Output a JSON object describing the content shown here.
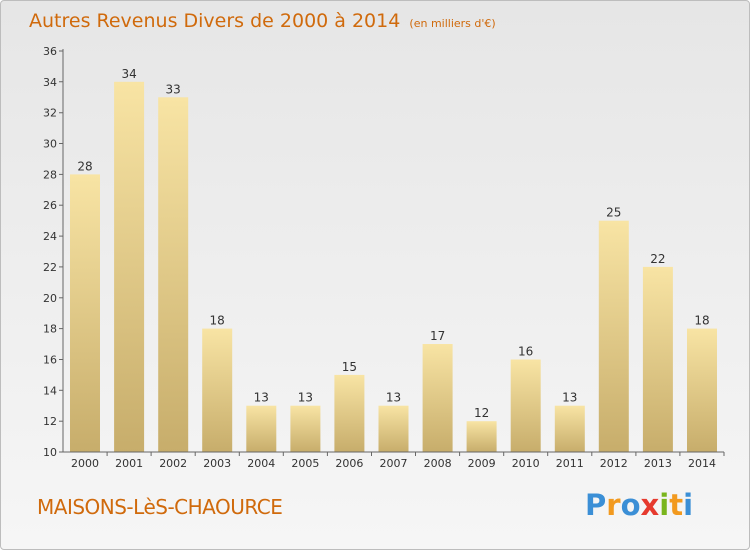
{
  "title": "Autres Revenus Divers de 2000 à 2014",
  "unit": "(en milliers d'€)",
  "commune": "MAISONS-LèS-CHAOURCE",
  "logo": "Proxiti",
  "colors": {
    "title": "#d06a0c",
    "bar_light": "#f8e4a4",
    "bar_dark": "#c7ad6b",
    "axis": "#666666"
  },
  "chart_data": {
    "type": "bar",
    "title": "Autres Revenus Divers de 2000 à 2014",
    "subtitle": "(en milliers d'€)",
    "categories": [
      "2000",
      "2001",
      "2002",
      "2003",
      "2004",
      "2005",
      "2006",
      "2007",
      "2008",
      "2009",
      "2010",
      "2011",
      "2012",
      "2013",
      "2014"
    ],
    "values": [
      28,
      34,
      33,
      18,
      13,
      13,
      15,
      13,
      17,
      12,
      16,
      13,
      25,
      22,
      18
    ],
    "ylim": [
      10,
      36
    ],
    "yticks": [
      10,
      12,
      14,
      16,
      18,
      20,
      22,
      24,
      26,
      28,
      30,
      32,
      34,
      36
    ],
    "grid": false,
    "xlabel": "",
    "ylabel": ""
  }
}
